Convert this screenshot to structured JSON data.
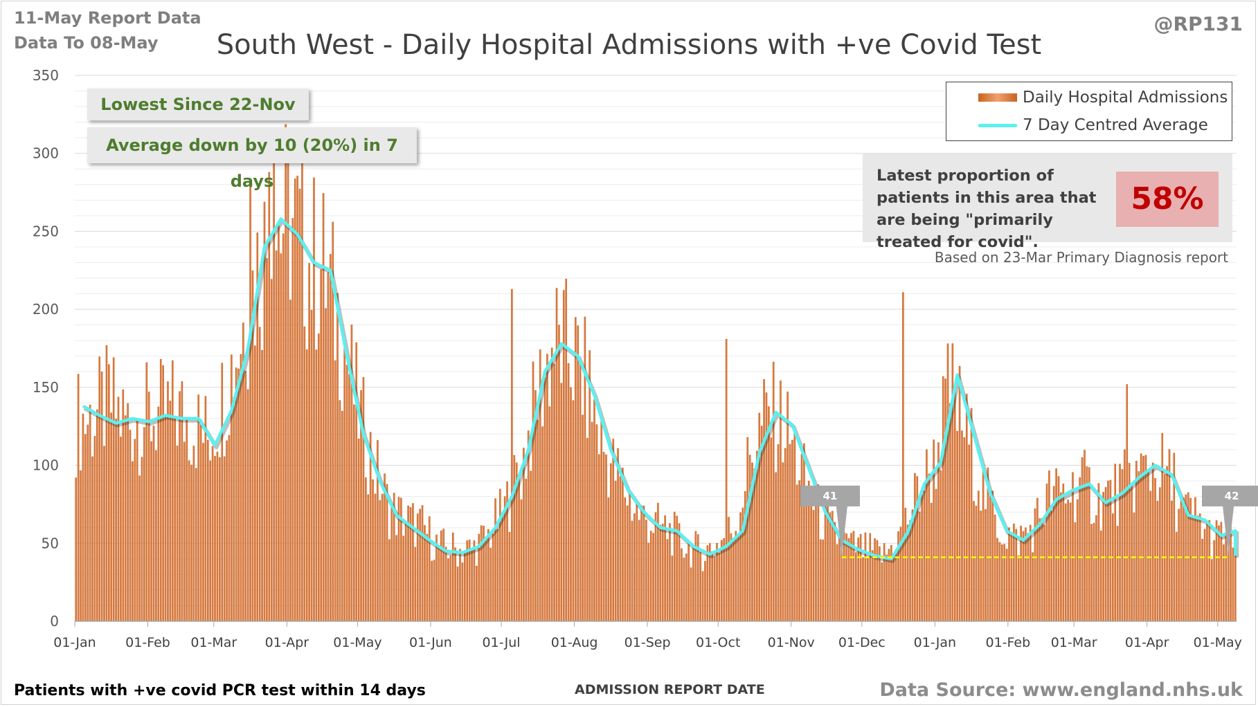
{
  "header": {
    "report_line1": "11-May Report Data",
    "report_line2": "Data To 08-May",
    "handle": "@RP131"
  },
  "footer": {
    "left_note": "Patients with +ve covid PCR test within 14 days",
    "x_axis_title": "ADMISSION REPORT DATE",
    "source": "Data Source: www.england.nhs.uk"
  },
  "callouts": {
    "lowest_since": "Lowest Since 22-Nov",
    "average_change": "Average down by 10 (20%) in 7 days"
  },
  "proportion_box": {
    "text": "Latest proportion of patients in this area that are being \"primarily treated for covid\".",
    "value": "58%",
    "based_on": "Based on 23-Mar Primary Diagnosis report"
  },
  "colors": {
    "bar": "#c8641e",
    "average_line": "#5cf0f0",
    "reference_line": "#ffff00",
    "callout_text": "#4e7d2e",
    "highlight_value": "#c00000"
  },
  "chart_data": {
    "type": "bar",
    "title": "South West - Daily Hospital Admissions with +ve Covid Test",
    "xlabel": "ADMISSION REPORT DATE",
    "ylabel": "",
    "ylim": [
      0,
      350
    ],
    "yticks": [
      0,
      50,
      100,
      150,
      200,
      250,
      300,
      350
    ],
    "grid": true,
    "legend_position": "top-right",
    "x_start": "2021-01-01",
    "x_end": "2022-05-08",
    "x_tick_labels": [
      "01-Jan",
      "01-Feb",
      "01-Mar",
      "01-Apr",
      "01-May",
      "01-Jun",
      "01-Jul",
      "01-Aug",
      "01-Sep",
      "01-Oct",
      "01-Nov",
      "01-Dec",
      "01-Jan",
      "01-Feb",
      "01-Mar",
      "01-Apr",
      "01-May"
    ],
    "x_tick_dates": [
      "2021-01-01",
      "2021-02-01",
      "2021-03-01",
      "2021-04-01",
      "2021-05-01",
      "2021-06-01",
      "2021-07-01",
      "2021-08-01",
      "2021-09-01",
      "2021-10-01",
      "2021-11-01",
      "2021-12-01",
      "2022-01-01",
      "2022-02-01",
      "2022-03-01",
      "2022-04-01",
      "2022-05-01"
    ],
    "series": [
      {
        "name": "Daily Hospital Admissions",
        "kind": "bar",
        "weekly_mean_values": [
          128,
          130,
          140,
          128,
          130,
          132,
          135,
          128,
          118,
          145,
          185,
          225,
          255,
          258,
          232,
          225,
          190,
          140,
          102,
          72,
          65,
          60,
          48,
          46,
          46,
          55,
          72,
          98,
          145,
          178,
          172,
          150,
          110,
          90,
          70,
          62,
          58,
          48,
          44,
          50,
          62,
          112,
          133,
          125,
          95,
          70,
          55,
          48,
          45,
          42,
          55,
          82,
          100,
          150,
          120,
          85,
          60,
          52,
          60,
          80,
          82,
          88,
          78,
          82,
          90,
          98,
          96,
          72,
          65,
          52,
          58,
          47,
          38
        ],
        "notable_peaks": [
          {
            "date": "2021-03-26",
            "value": 294
          },
          {
            "date": "2021-03-24",
            "value": 288
          },
          {
            "date": "2021-03-16",
            "value": 283
          },
          {
            "date": "2021-07-05",
            "value": 213
          },
          {
            "date": "2021-12-18",
            "value": 211
          },
          {
            "date": "2021-10-04",
            "value": 181
          },
          {
            "date": "2022-03-23",
            "value": 152
          },
          {
            "date": "2022-04-12",
            "value": 108
          }
        ]
      },
      {
        "name": "7 Day Centred Average",
        "kind": "line",
        "weekly_values": [
          138,
          132,
          127,
          130,
          128,
          132,
          130,
          130,
          113,
          135,
          175,
          240,
          258,
          248,
          230,
          225,
          170,
          120,
          90,
          68,
          60,
          52,
          45,
          44,
          48,
          60,
          80,
          110,
          160,
          178,
          170,
          145,
          110,
          85,
          70,
          60,
          58,
          48,
          43,
          48,
          58,
          108,
          134,
          126,
          98,
          70,
          52,
          46,
          42,
          40,
          57,
          88,
          102,
          158,
          120,
          82,
          58,
          52,
          62,
          78,
          84,
          88,
          76,
          82,
          92,
          100,
          94,
          68,
          65,
          55,
          58,
          52,
          42
        ]
      }
    ],
    "annotations": [
      {
        "label": "41",
        "date": "2021-11-22",
        "value": 41
      },
      {
        "label": "42",
        "date": "2022-05-05",
        "value": 42
      }
    ],
    "reference_line": {
      "from": "2021-11-22",
      "to": "2022-05-05",
      "value": 41
    }
  }
}
